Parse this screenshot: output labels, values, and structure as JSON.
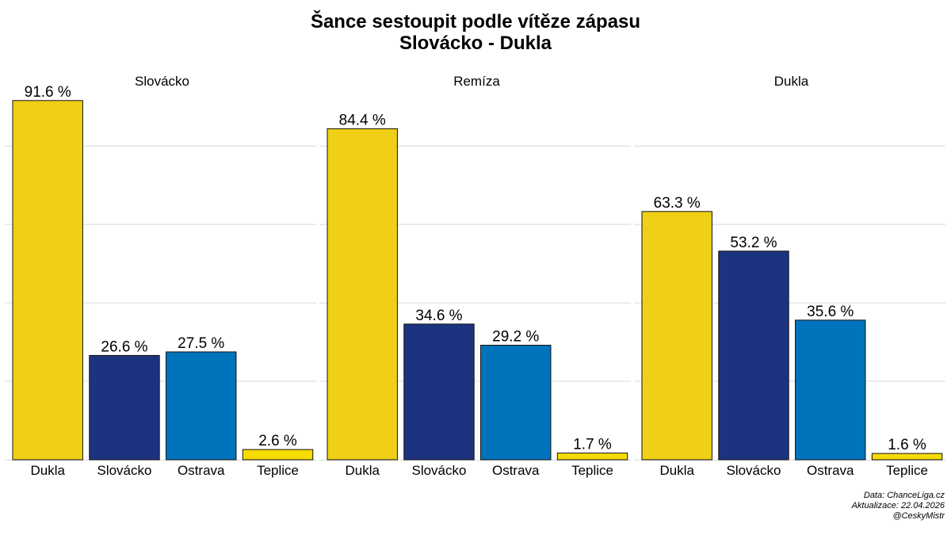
{
  "title": "Šance sestoupit podle vítěze zápasu",
  "subtitle": "Slovácko - Dukla",
  "colors": {
    "Dukla": "#f0d016",
    "Slovácko": "#1c3380",
    "Ostrava": "#0073bd",
    "Teplice": "#f8dc00",
    "grid": "#d9d9d9",
    "axis": "#000000"
  },
  "chart_data": {
    "type": "bar",
    "ylim": [
      0,
      95
    ],
    "grid": true,
    "value_suffix": " %",
    "facets": [
      {
        "title": "Slovácko",
        "categories": [
          "Dukla",
          "Slovácko",
          "Ostrava",
          "Teplice"
        ],
        "values": [
          91.6,
          26.6,
          27.5,
          2.6
        ],
        "labels": [
          "91.6 %",
          "26.6 %",
          "27.5 %",
          "2.6 %"
        ]
      },
      {
        "title": "Remíza",
        "categories": [
          "Dukla",
          "Slovácko",
          "Ostrava",
          "Teplice"
        ],
        "values": [
          84.4,
          34.6,
          29.2,
          1.7
        ],
        "labels": [
          "84.4 %",
          "34.6 %",
          "29.2 %",
          "1.7 %"
        ]
      },
      {
        "title": "Dukla",
        "categories": [
          "Dukla",
          "Slovácko",
          "Ostrava",
          "Teplice"
        ],
        "values": [
          63.3,
          53.2,
          35.6,
          1.6
        ],
        "labels": [
          "63.3 %",
          "53.2 %",
          "35.6 %",
          "1.6 %"
        ]
      }
    ]
  },
  "caption": {
    "source": "Data: ChanceLiga.cz",
    "updated": "Aktualizace:  22.04.2026",
    "handle": "@CeskyMistr"
  }
}
